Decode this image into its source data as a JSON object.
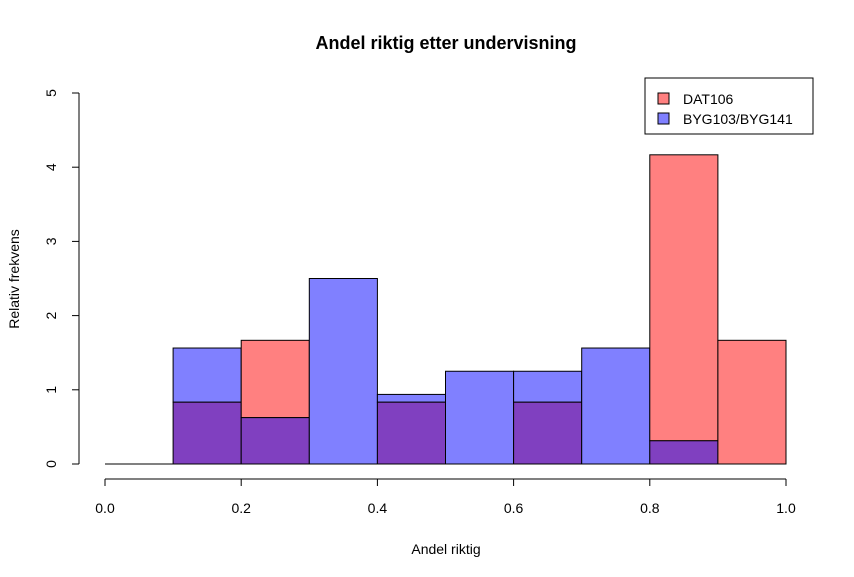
{
  "chart_data": {
    "type": "bar",
    "title": "Andel riktig etter undervisning",
    "xlabel": "Andel riktig",
    "ylabel": "Relativ frekvens",
    "xlim": [
      0,
      1
    ],
    "ylim": [
      0,
      5
    ],
    "x_ticks": [
      "0.0",
      "0.2",
      "0.4",
      "0.6",
      "0.8",
      "1.0"
    ],
    "y_ticks": [
      "0",
      "1",
      "2",
      "3",
      "4",
      "5"
    ],
    "bin_edges": [
      0.0,
      0.1,
      0.2,
      0.3,
      0.4,
      0.5,
      0.6,
      0.7,
      0.8,
      0.9,
      1.0
    ],
    "legend_position": "top-right",
    "grid": false,
    "series": [
      {
        "name": "DAT106",
        "color": "#ff8080",
        "values": [
          0,
          0.833,
          1.667,
          0,
          0.833,
          0,
          0.833,
          0,
          4.167,
          1.667
        ]
      },
      {
        "name": "BYG103/BYG141",
        "color": "#8080ff",
        "values": [
          0,
          1.563,
          0.625,
          2.5,
          0.938,
          1.25,
          1.25,
          1.563,
          0.313,
          0
        ]
      }
    ],
    "overlap_color": "#8040c0"
  }
}
